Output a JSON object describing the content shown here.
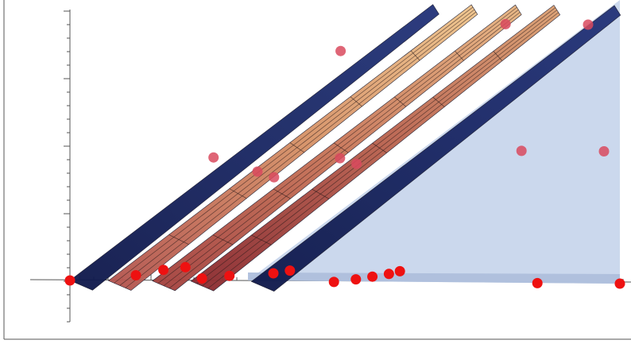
{
  "chart_data": {
    "type": "surface3d",
    "title": "",
    "xlabel": "",
    "ylabel": "",
    "zlabel": "",
    "xlim": [
      0,
      1
    ],
    "ylim": [
      0,
      1
    ],
    "zlim": [
      -0.3,
      1.0
    ],
    "grid": false,
    "legend": "none",
    "tick_labels": [],
    "surfaces": [
      {
        "id": "navy-left",
        "color": "#0f1a4e",
        "offset": 0.0
      },
      {
        "id": "peach-1",
        "color": "#e2ad7e",
        "offset": 0.07
      },
      {
        "id": "peach-2",
        "color": "#d99a70",
        "offset": 0.15
      },
      {
        "id": "peach-3",
        "color": "#c98464",
        "offset": 0.22
      },
      {
        "id": "navy-right",
        "color": "#1a2a66",
        "offset": 0.33
      }
    ],
    "plane": {
      "color": "#c8d6ec"
    },
    "points": [
      {
        "x": 0.0,
        "y": 0.0,
        "z": 0.0
      },
      {
        "x": 0.12,
        "y": 0.0,
        "z": 0.02
      },
      {
        "x": 0.17,
        "y": 0.0,
        "z": 0.04
      },
      {
        "x": 0.21,
        "y": 0.0,
        "z": 0.05
      },
      {
        "x": 0.24,
        "y": 0.0,
        "z": 0.01
      },
      {
        "x": 0.29,
        "y": 0.0,
        "z": 0.02
      },
      {
        "x": 0.37,
        "y": 0.0,
        "z": 0.03
      },
      {
        "x": 0.4,
        "y": 0.0,
        "z": 0.04
      },
      {
        "x": 0.48,
        "y": 0.0,
        "z": 0.0
      },
      {
        "x": 0.52,
        "y": 0.0,
        "z": 0.01
      },
      {
        "x": 0.55,
        "y": 0.0,
        "z": 0.02
      },
      {
        "x": 0.58,
        "y": 0.0,
        "z": 0.03
      },
      {
        "x": 0.6,
        "y": 0.0,
        "z": 0.04
      },
      {
        "x": 0.85,
        "y": 0.0,
        "z": 0.0
      },
      {
        "x": 1.0,
        "y": 0.0,
        "z": 0.0
      },
      {
        "x": 0.29,
        "y": 0.5,
        "z": 0.48
      },
      {
        "x": 0.37,
        "y": 0.5,
        "z": 0.43
      },
      {
        "x": 0.4,
        "y": 0.5,
        "z": 0.41
      },
      {
        "x": 0.52,
        "y": 0.5,
        "z": 0.48
      },
      {
        "x": 0.55,
        "y": 0.5,
        "z": 0.46
      },
      {
        "x": 0.85,
        "y": 0.5,
        "z": 0.51
      },
      {
        "x": 1.0,
        "y": 0.5,
        "z": 0.51
      },
      {
        "x": 0.55,
        "y": 1.0,
        "z": 0.9
      },
      {
        "x": 0.85,
        "y": 1.0,
        "z": 1.0
      },
      {
        "x": 1.0,
        "y": 1.0,
        "z": 1.0
      }
    ]
  }
}
